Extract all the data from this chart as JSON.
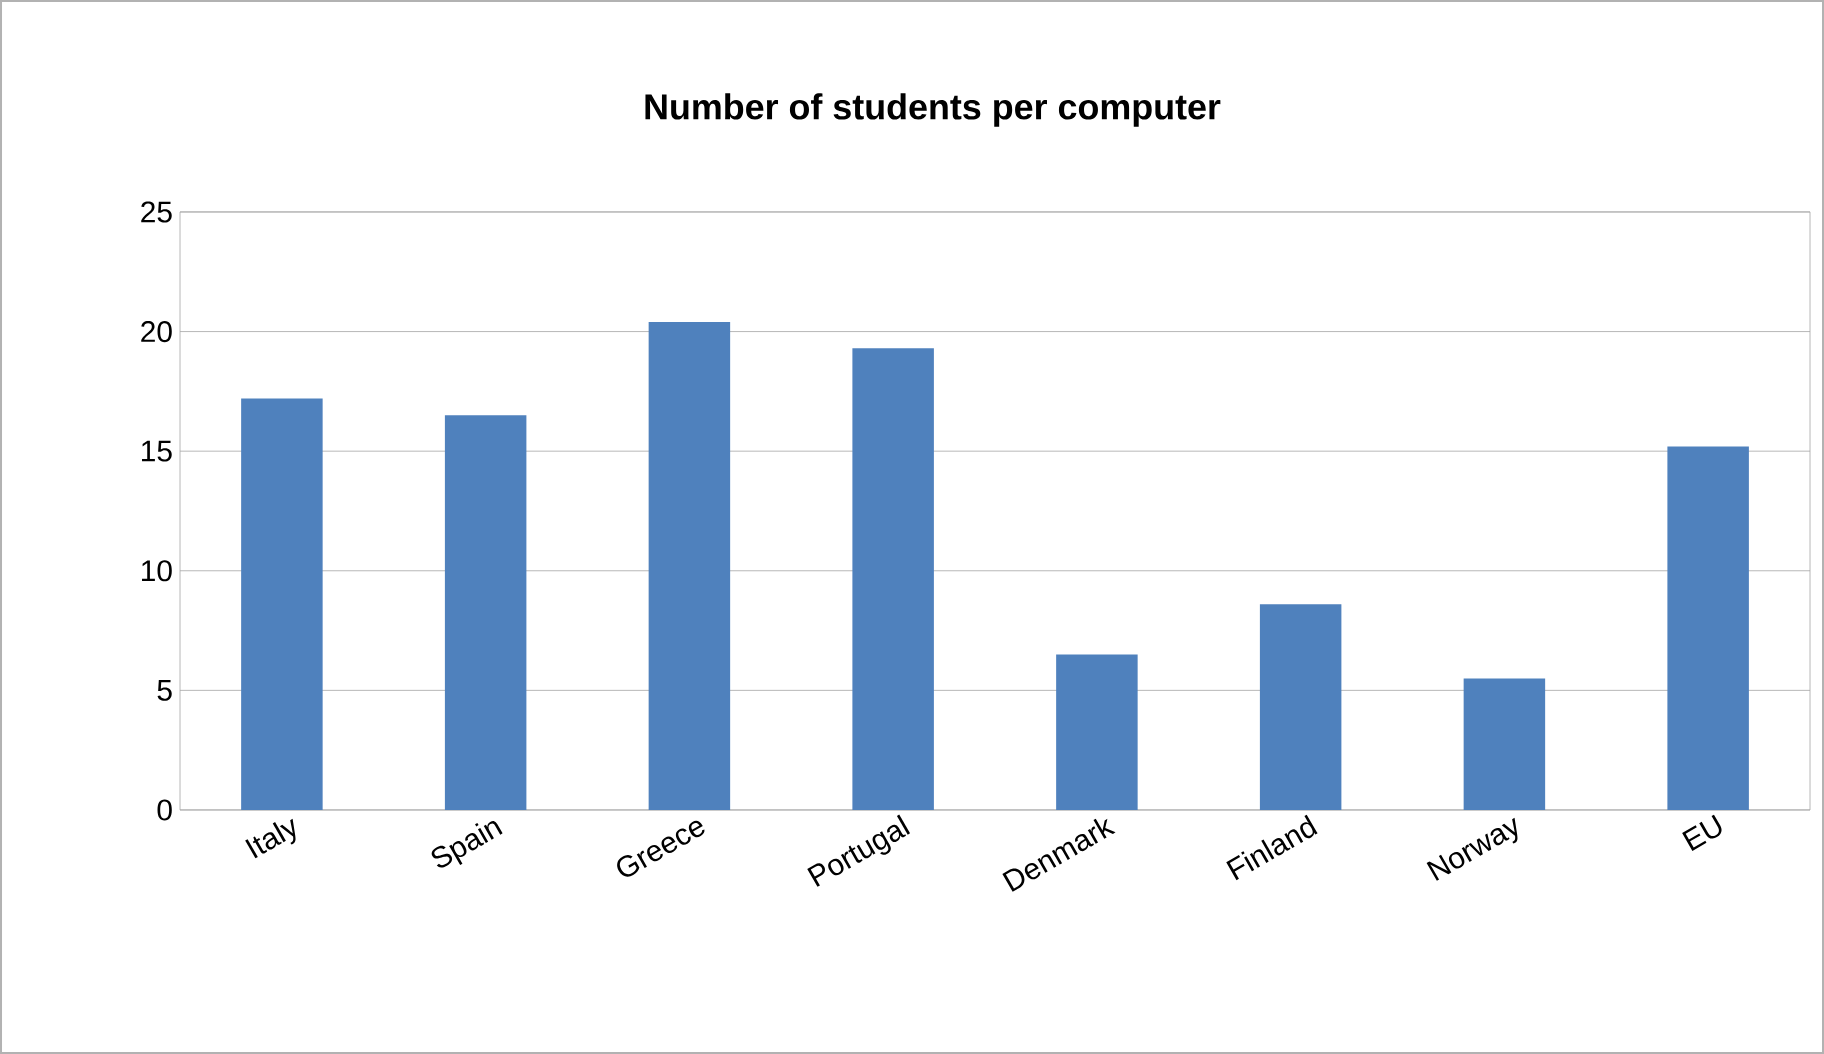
{
  "chart_data": {
    "type": "bar",
    "title": "Number of students per computer",
    "categories": [
      "Italy",
      "Spain",
      "Greece",
      "Portugal",
      "Denmark",
      "Finland",
      "Norway",
      "EU"
    ],
    "values": [
      17.2,
      16.5,
      20.4,
      19.3,
      6.5,
      8.6,
      5.5,
      15.2
    ],
    "color": "#4f81bd",
    "ylim": [
      0,
      25
    ],
    "yticks": [
      0,
      5,
      10,
      15,
      20,
      25
    ],
    "grid": "y"
  }
}
